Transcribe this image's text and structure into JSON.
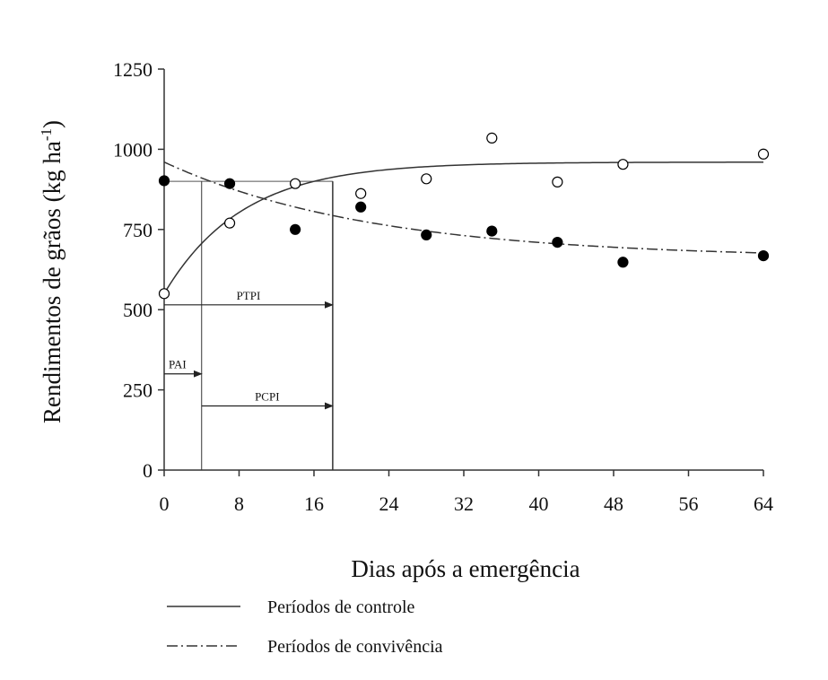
{
  "chart_data": {
    "type": "scatter",
    "xlabel": "Dias após a emergência",
    "ylabel": "Rendimentos de grãos (kg ha",
    "ylabel_sup": "-1",
    "ylabel_close": ")",
    "xlim": [
      0,
      64
    ],
    "ylim": [
      0,
      1250
    ],
    "xticks": [
      0,
      8,
      16,
      24,
      32,
      40,
      48,
      56,
      64
    ],
    "yticks": [
      0,
      250,
      500,
      750,
      1000,
      1250
    ],
    "grid": false,
    "legend_position": "bottom-left",
    "series": [
      {
        "name": "Períodos de controle",
        "marker": "open-circle",
        "line_style": "solid",
        "x": [
          0,
          7,
          14,
          21,
          28,
          35,
          42,
          49,
          64
        ],
        "y": [
          550,
          770,
          893,
          862,
          908,
          1035,
          898,
          953,
          985
        ]
      },
      {
        "name": "Períodos de convivência",
        "marker": "filled-circle",
        "line_style": "dash-dot",
        "x": [
          0,
          7,
          14,
          21,
          28,
          35,
          42,
          49,
          64
        ],
        "y": [
          902,
          893,
          750,
          820,
          733,
          745,
          710,
          648,
          668
        ]
      }
    ],
    "fitted_curves": {
      "control": {
        "asymptote": 960,
        "start": 550,
        "rate": 0.12
      },
      "coexistence": {
        "asymptote": 660,
        "start": 960,
        "rate": 0.045
      }
    },
    "reference_lines": {
      "level": 900,
      "x_pai": 4,
      "x_ptpi": 18
    },
    "annotations": [
      {
        "label": "PTPI",
        "from": 0,
        "to": 18,
        "y": 515
      },
      {
        "label": "PAI",
        "from": 0,
        "to": 4,
        "y": 300
      },
      {
        "label": "PCPI",
        "from": 4,
        "to": 18,
        "y": 200
      }
    ]
  }
}
